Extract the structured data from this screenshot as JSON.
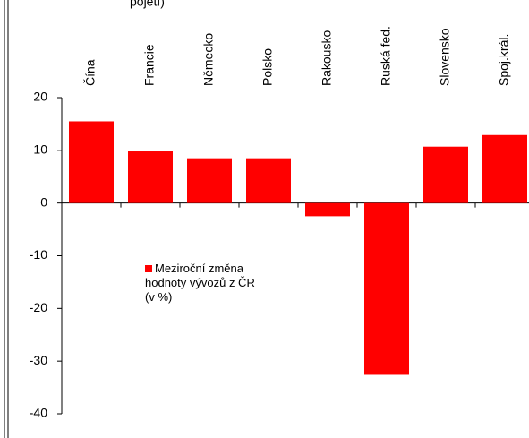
{
  "chart_data": {
    "type": "bar",
    "title": "pojetí)",
    "categories": [
      "Čína",
      "Francie",
      "Německo",
      "Polsko",
      "Rakousko",
      "Ruská fed.",
      "Slovensko",
      "Spoj.král."
    ],
    "series": [
      {
        "name": "Meziroční změna hodnoty vývozů z ČR (v %)",
        "color": "#ff0000",
        "values": [
          15.5,
          9.8,
          8.5,
          8.5,
          -2.5,
          -32.6,
          10.7,
          12.9
        ]
      }
    ],
    "ylim": [
      -40,
      20
    ],
    "yticks": [
      -40,
      -30,
      -20,
      -10,
      0,
      10,
      20
    ]
  }
}
